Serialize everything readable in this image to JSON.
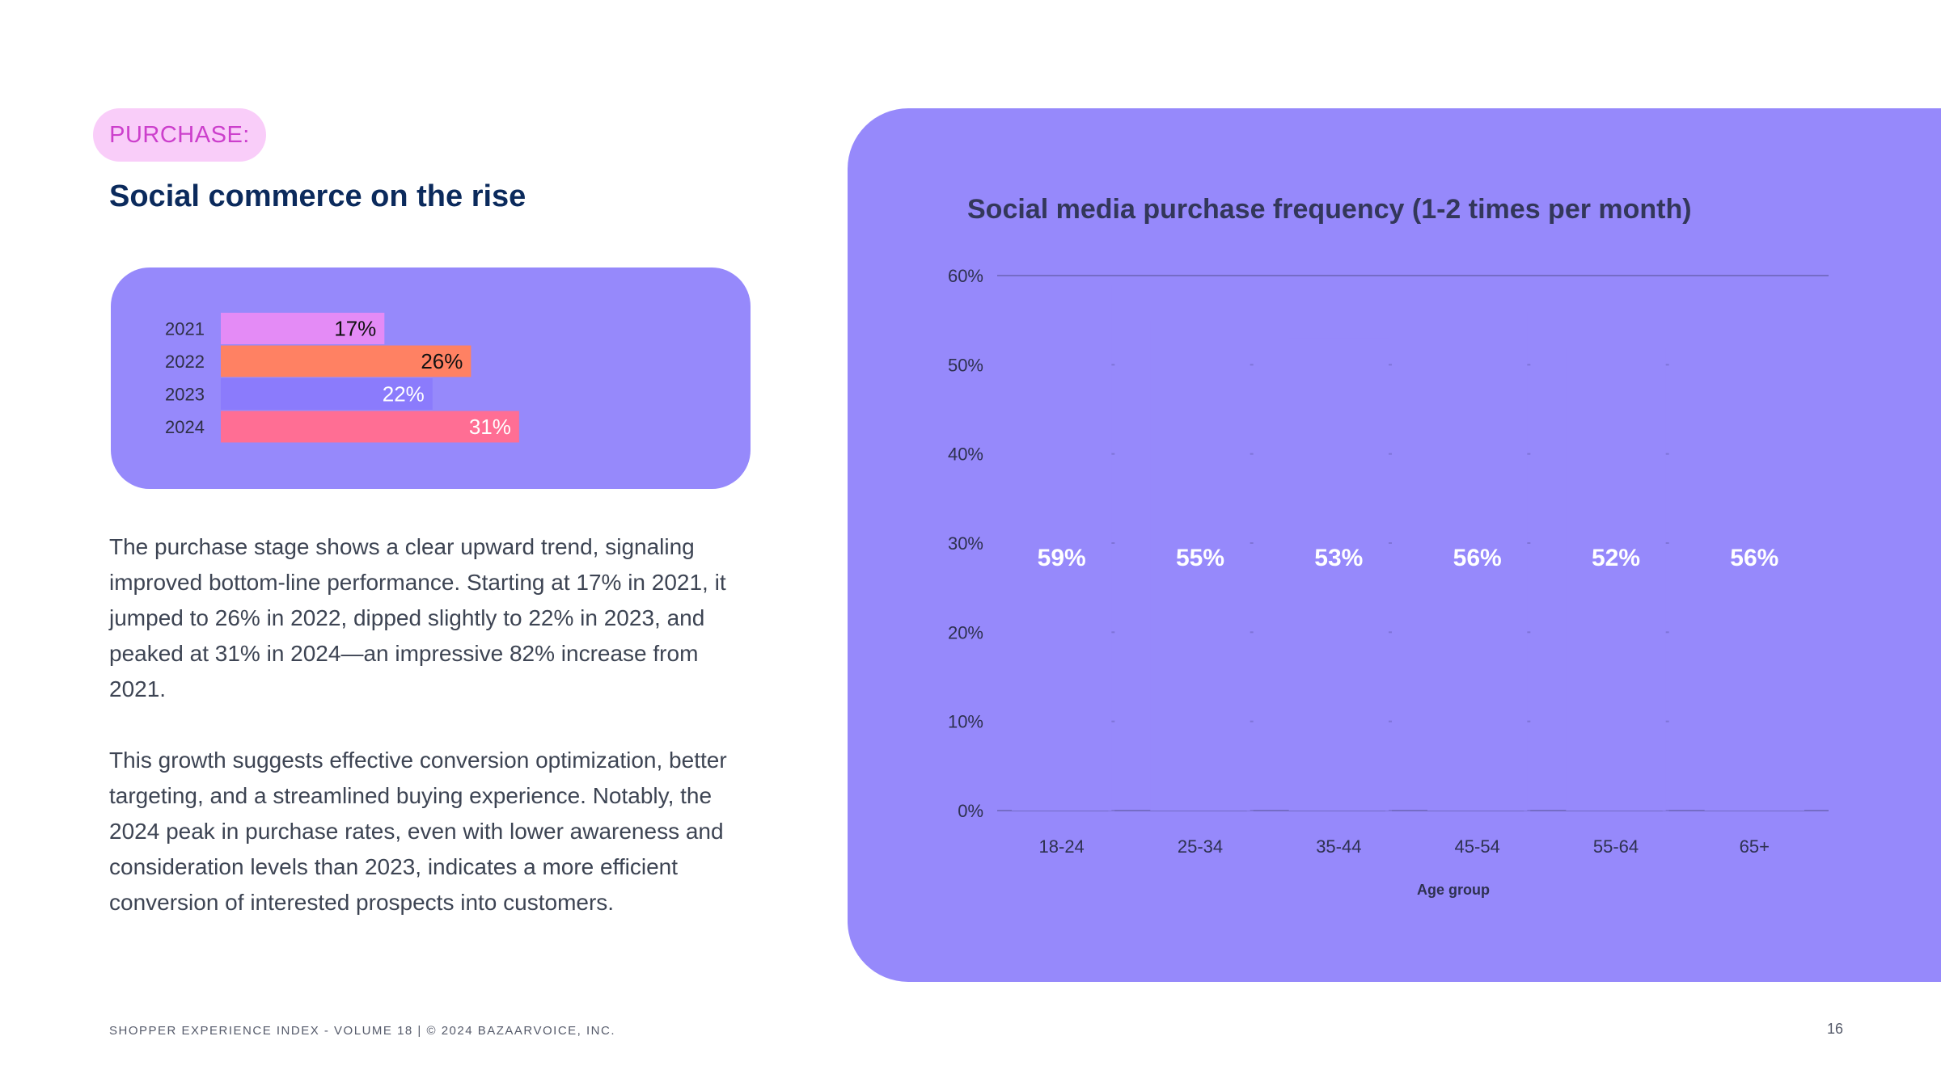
{
  "header": {
    "tag": "PURCHASE:",
    "title": "Social commerce on the rise"
  },
  "mini_chart": {
    "type": "bar",
    "orientation": "horizontal",
    "categories": [
      "2021",
      "2022",
      "2023",
      "2024"
    ],
    "values": [
      17,
      26,
      22,
      31
    ],
    "labels": [
      "17%",
      "26%",
      "22%",
      "31%"
    ],
    "colors": [
      "#e48bf6",
      "#ff8163",
      "#8b7bfc",
      "#ff6e94"
    ],
    "label_colors": [
      "#111111",
      "#111111",
      "#ffffff",
      "#ffffff"
    ]
  },
  "body": {
    "paragraph1": "The purchase stage shows a clear upward trend, signaling improved bottom-line performance. Starting at 17% in 2021, it jumped to 26% in 2022, dipped slightly to 22% in 2023, and peaked at 31% in 2024—an impressive 82% increase from 2021.",
    "paragraph2": "This growth suggests effective conversion optimization, better targeting, and a streamlined buying experience. Notably, the 2024 peak in purchase rates, even with lower awareness and consideration levels than 2023, indicates a more efficient conversion of interested prospects into customers."
  },
  "chart_data": {
    "type": "bar",
    "title": "Social media purchase frequency (1-2 times per month)",
    "xlabel": "Age group",
    "ylabel": "",
    "categories": [
      "18-24",
      "25-34",
      "35-44",
      "45-54",
      "55-64",
      "65+"
    ],
    "values": [
      59,
      55,
      53,
      56,
      52,
      56
    ],
    "labels": [
      "59%",
      "55%",
      "53%",
      "56%",
      "52%",
      "56%"
    ],
    "yticks": [
      "0%",
      "10%",
      "20%",
      "30%",
      "40%",
      "50%",
      "60%"
    ],
    "ylim": [
      0,
      60
    ],
    "grid": false
  },
  "colors": {
    "card": "#9689fb",
    "tag_bg": "#f9cdf9",
    "tag_text": "#cc3fcc",
    "title": "#0b2a5c",
    "chart_text": "#33375a"
  },
  "footer": {
    "text": "SHOPPER EXPERIENCE INDEX - VOLUME 18  |  © 2024 BAZAARVOICE, INC.",
    "page_number": "16"
  }
}
